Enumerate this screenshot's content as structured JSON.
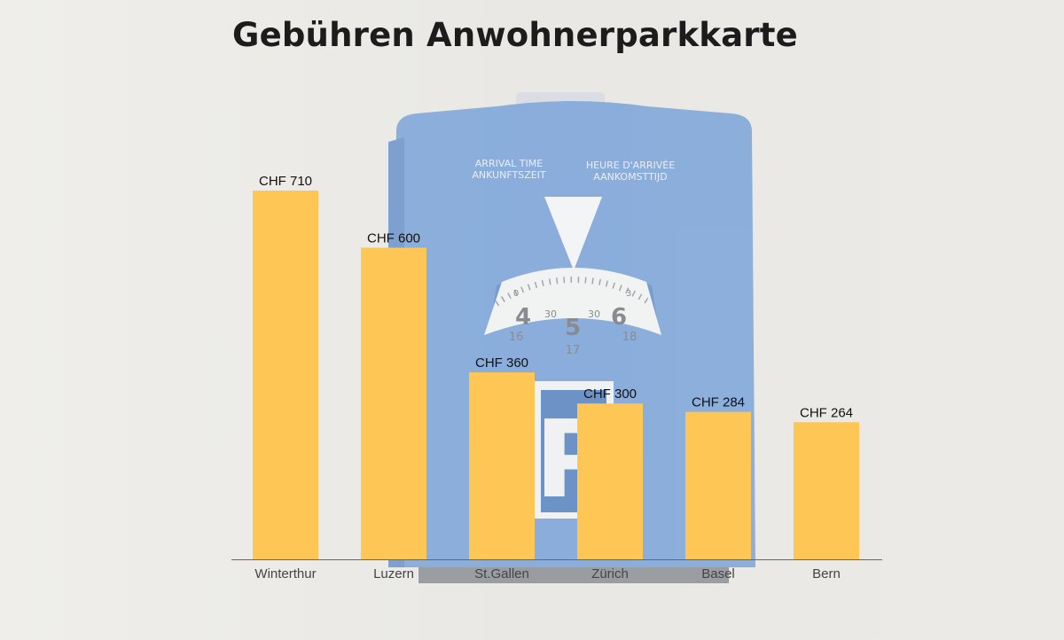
{
  "page": {
    "background_color": "#ecebe7"
  },
  "illustration": {
    "name": "parking-disc",
    "disc_color": "#7ea6da",
    "header_left": [
      "ARRIVAL TIME",
      "ANKUNFTSZEIT"
    ],
    "header_right": [
      "HEURE D'ARRIVÉE",
      "AANKOMSTTIJD"
    ],
    "dial_hours": [
      "4",
      "5",
      "6"
    ],
    "dial_minutes": [
      "30",
      "30"
    ],
    "dial_secondary": [
      "16",
      "17",
      "18"
    ],
    "dial_edge_left": "0",
    "dial_edge_right": "3",
    "symbol": "P"
  },
  "chart_data": {
    "type": "bar",
    "title": "Gebühren Anwohnerparkkarte",
    "categories": [
      "Winterthur",
      "Luzern",
      "St.Gallen",
      "Zürich",
      "Basel",
      "Bern"
    ],
    "values": [
      710,
      600,
      360,
      300,
      284,
      264
    ],
    "value_labels": [
      "CHF 710",
      "CHF 600",
      "CHF 360",
      "CHF 300",
      "CHF 284",
      "CHF 264"
    ],
    "bar_color": "#fdc655",
    "ylim": [
      0,
      750
    ],
    "grid": false,
    "legend": "none"
  }
}
